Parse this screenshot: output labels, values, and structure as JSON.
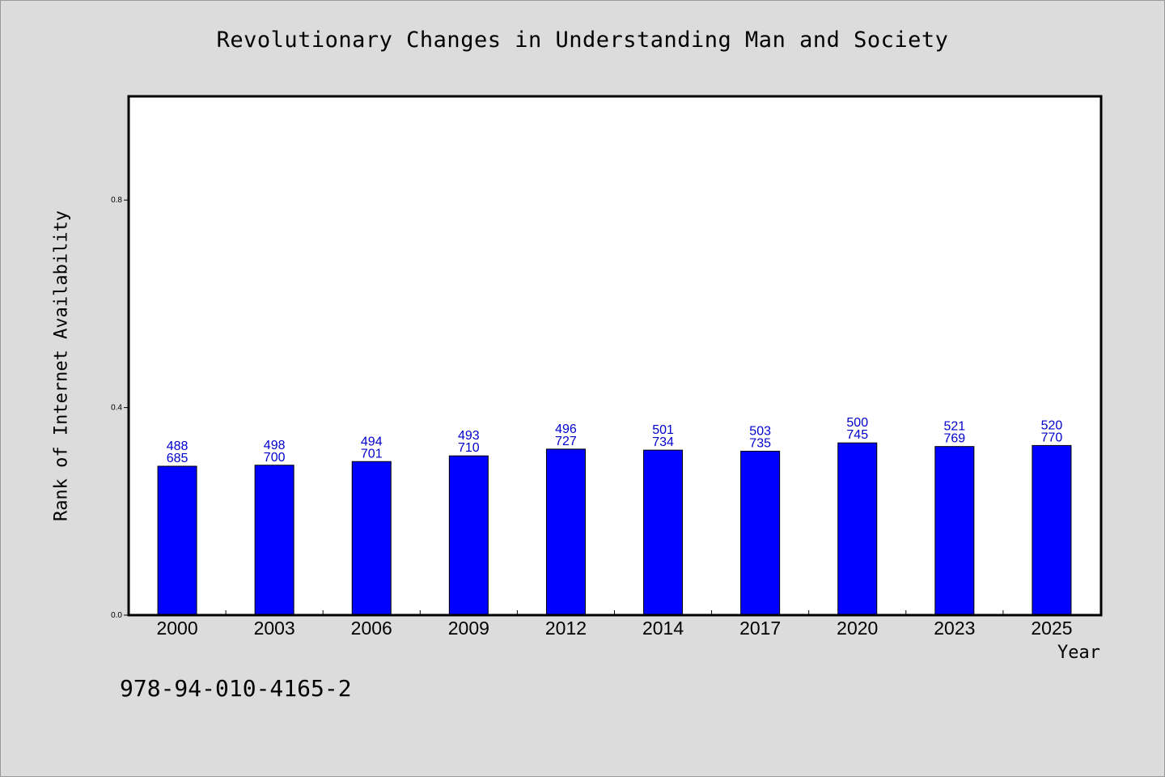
{
  "chart_data": {
    "type": "bar",
    "title": "Revolutionary Changes in Understanding Man and Society",
    "xlabel": "Year",
    "ylabel": "Rank of Internet Availability",
    "ylim": [
      0,
      1.0
    ],
    "yticks": [
      0.0,
      0.4,
      0.8
    ],
    "ytick_labels": [
      "0.0",
      "0.4",
      "0.8"
    ],
    "categories": [
      "2000",
      "2003",
      "2006",
      "2009",
      "2012",
      "2014",
      "2017",
      "2020",
      "2023",
      "2025"
    ],
    "values": [
      0.287,
      0.289,
      0.296,
      0.307,
      0.32,
      0.318,
      0.316,
      0.332,
      0.325,
      0.327
    ],
    "annotations_top": [
      "488",
      "498",
      "494",
      "493",
      "496",
      "501",
      "503",
      "500",
      "521",
      "520"
    ],
    "annotations_bottom": [
      "685",
      "700",
      "701",
      "710",
      "727",
      "734",
      "735",
      "745",
      "769",
      "770"
    ],
    "bar_color": "#0000ff",
    "annotation_color": "#0000cc",
    "grid": false,
    "legend": "none"
  },
  "footer": {
    "isbn": "978-94-010-4165-2"
  }
}
